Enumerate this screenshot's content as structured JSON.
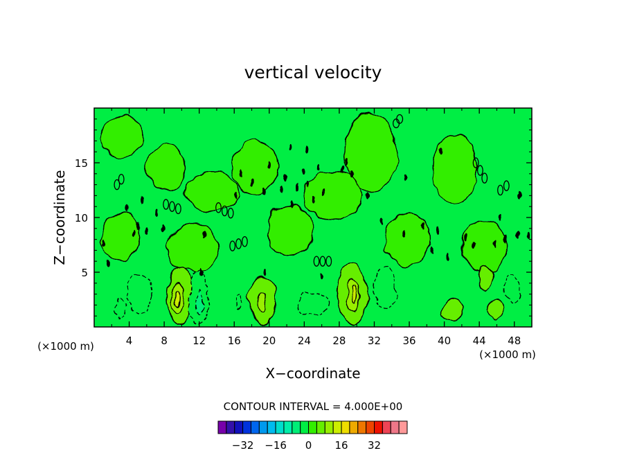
{
  "chart_data": {
    "type": "heatmap",
    "title": "vertical velocity",
    "xlabel": "X−coordinate",
    "ylabel": "Z−coordinate",
    "x_unit_label": "(×1000 m)",
    "y_unit_label": "(×1000 m)",
    "xlim": [
      0,
      50
    ],
    "ylim": [
      0,
      20
    ],
    "x_ticks": [
      {
        "value": 4,
        "label": "4"
      },
      {
        "value": 8,
        "label": "8"
      },
      {
        "value": 12,
        "label": "12"
      },
      {
        "value": 16,
        "label": "16"
      },
      {
        "value": 20,
        "label": "20"
      },
      {
        "value": 24,
        "label": "24"
      },
      {
        "value": 28,
        "label": "28"
      },
      {
        "value": 32,
        "label": "32"
      },
      {
        "value": 36,
        "label": "36"
      },
      {
        "value": 40,
        "label": "40"
      },
      {
        "value": 44,
        "label": "44"
      },
      {
        "value": 48,
        "label": "48"
      }
    ],
    "y_ticks": [
      {
        "value": 5,
        "label": "5"
      },
      {
        "value": 10,
        "label": "10"
      },
      {
        "value": 15,
        "label": "15"
      }
    ],
    "contour_interval_text": "CONTOUR INTERVAL = 4.000E+00",
    "contour_interval": 4,
    "background_level_color": "#00ee44",
    "regions": [
      {
        "type": "positive",
        "level": 4,
        "x": 9.8,
        "z": 2.8,
        "rx": 1.5,
        "rz": 2.6
      },
      {
        "type": "positive",
        "level": 8,
        "x": 9.5,
        "z": 2.7,
        "rx": 0.7,
        "rz": 1.5
      },
      {
        "type": "positive",
        "level": 12,
        "x": 9.5,
        "z": 2.6,
        "rx": 0.25,
        "rz": 0.8
      },
      {
        "type": "positive",
        "level": 4,
        "x": 19.2,
        "z": 2.4,
        "rx": 1.6,
        "rz": 2.2
      },
      {
        "type": "positive",
        "level": 8,
        "x": 19.2,
        "z": 2.2,
        "rx": 0.5,
        "rz": 0.9
      },
      {
        "type": "positive",
        "level": 4,
        "x": 29.5,
        "z": 3.0,
        "rx": 1.7,
        "rz": 2.8
      },
      {
        "type": "positive",
        "level": 8,
        "x": 29.6,
        "z": 2.9,
        "rx": 0.8,
        "rz": 1.5
      },
      {
        "type": "positive",
        "level": 12,
        "x": 29.8,
        "z": 3.0,
        "rx": 0.3,
        "rz": 0.8
      },
      {
        "type": "positive",
        "level": 4,
        "x": 41.0,
        "z": 1.5,
        "rx": 1.2,
        "rz": 1.0
      },
      {
        "type": "positive",
        "level": 4,
        "x": 44.8,
        "z": 4.5,
        "rx": 0.8,
        "rz": 1.2
      },
      {
        "type": "positive",
        "level": 4,
        "x": 45.8,
        "z": 1.6,
        "rx": 0.8,
        "rz": 0.9
      },
      {
        "type": "negative",
        "level": -4,
        "x": 5.2,
        "z": 3.0,
        "rx": 1.4,
        "rz": 1.8
      },
      {
        "type": "negative",
        "level": -4,
        "x": 12.0,
        "z": 2.8,
        "rx": 1.1,
        "rz": 2.5
      },
      {
        "type": "negative",
        "level": -8,
        "x": 12.1,
        "z": 2.3,
        "rx": 0.35,
        "rz": 1.0
      },
      {
        "type": "negative",
        "level": -4,
        "x": 3.0,
        "z": 1.6,
        "rx": 0.6,
        "rz": 0.8
      },
      {
        "type": "negative",
        "level": -4,
        "x": 25.0,
        "z": 2.1,
        "rx": 1.7,
        "rz": 1.1
      },
      {
        "type": "negative",
        "level": -4,
        "x": 33.2,
        "z": 3.5,
        "rx": 1.2,
        "rz": 1.8
      },
      {
        "type": "negative",
        "level": -4,
        "x": 47.7,
        "z": 3.6,
        "rx": 0.9,
        "rz": 1.2
      },
      {
        "type": "negative",
        "level": -4,
        "x": 16.5,
        "z": 2.4,
        "rx": 0.4,
        "rz": 0.6
      }
    ],
    "zero_contours": [
      {
        "x": 2.6,
        "z": 13.0,
        "rx": 0.3,
        "rz": 0.45
      },
      {
        "x": 3.1,
        "z": 13.5,
        "rx": 0.3,
        "rz": 0.45
      },
      {
        "x": 8.2,
        "z": 11.2,
        "rx": 0.3,
        "rz": 0.45
      },
      {
        "x": 8.9,
        "z": 11.0,
        "rx": 0.3,
        "rz": 0.45
      },
      {
        "x": 9.6,
        "z": 10.8,
        "rx": 0.3,
        "rz": 0.45
      },
      {
        "x": 14.2,
        "z": 10.9,
        "rx": 0.3,
        "rz": 0.45
      },
      {
        "x": 14.9,
        "z": 10.6,
        "rx": 0.3,
        "rz": 0.45
      },
      {
        "x": 15.6,
        "z": 10.4,
        "rx": 0.3,
        "rz": 0.45
      },
      {
        "x": 15.8,
        "z": 7.4,
        "rx": 0.3,
        "rz": 0.45
      },
      {
        "x": 16.5,
        "z": 7.6,
        "rx": 0.3,
        "rz": 0.45
      },
      {
        "x": 17.2,
        "z": 7.8,
        "rx": 0.3,
        "rz": 0.45
      },
      {
        "x": 25.4,
        "z": 6.0,
        "rx": 0.3,
        "rz": 0.45
      },
      {
        "x": 26.1,
        "z": 6.0,
        "rx": 0.3,
        "rz": 0.45
      },
      {
        "x": 26.8,
        "z": 6.0,
        "rx": 0.3,
        "rz": 0.45
      },
      {
        "x": 34.5,
        "z": 18.6,
        "rx": 0.35,
        "rz": 0.4
      },
      {
        "x": 34.9,
        "z": 19.0,
        "rx": 0.35,
        "rz": 0.4
      },
      {
        "x": 43.6,
        "z": 15.0,
        "rx": 0.3,
        "rz": 0.45
      },
      {
        "x": 44.1,
        "z": 14.3,
        "rx": 0.3,
        "rz": 0.45
      },
      {
        "x": 44.6,
        "z": 13.6,
        "rx": 0.3,
        "rz": 0.45
      },
      {
        "x": 46.4,
        "z": 12.5,
        "rx": 0.3,
        "rz": 0.45
      },
      {
        "x": 47.1,
        "z": 12.9,
        "rx": 0.3,
        "rz": 0.45
      }
    ],
    "region_outlines": [
      {
        "x": 3.2,
        "z": 17.4,
        "rx": 2.4,
        "rz": 1.9
      },
      {
        "x": 8.2,
        "z": 14.6,
        "rx": 2.2,
        "rz": 2.0
      },
      {
        "x": 18.4,
        "z": 14.6,
        "rx": 2.6,
        "rz": 2.4
      },
      {
        "x": 31.6,
        "z": 16.0,
        "rx": 3.0,
        "rz": 3.6
      },
      {
        "x": 41.2,
        "z": 14.4,
        "rx": 2.5,
        "rz": 3.2
      },
      {
        "x": 3.0,
        "z": 8.2,
        "rx": 2.2,
        "rz": 2.2
      },
      {
        "x": 11.2,
        "z": 7.2,
        "rx": 3.0,
        "rz": 2.1
      },
      {
        "x": 22.4,
        "z": 8.8,
        "rx": 2.6,
        "rz": 2.3
      },
      {
        "x": 35.8,
        "z": 8.0,
        "rx": 2.6,
        "rz": 2.4
      },
      {
        "x": 44.6,
        "z": 7.4,
        "rx": 2.6,
        "rz": 2.3
      },
      {
        "x": 27.2,
        "z": 12.0,
        "rx": 3.4,
        "rz": 2.2
      },
      {
        "x": 13.4,
        "z": 12.4,
        "rx": 3.0,
        "rz": 1.8
      }
    ],
    "small_dashes": [
      {
        "x": 3.8,
        "z": 10.9
      },
      {
        "x": 5.4,
        "z": 11.6
      },
      {
        "x": 4.6,
        "z": 8.6
      },
      {
        "x": 5.0,
        "z": 9.2
      },
      {
        "x": 6.0,
        "z": 8.8
      },
      {
        "x": 7.2,
        "z": 10.4
      },
      {
        "x": 7.8,
        "z": 9.0
      },
      {
        "x": 12.6,
        "z": 8.4
      },
      {
        "x": 16.2,
        "z": 12.0
      },
      {
        "x": 16.8,
        "z": 14.0
      },
      {
        "x": 18.0,
        "z": 13.2
      },
      {
        "x": 19.4,
        "z": 12.4
      },
      {
        "x": 20.0,
        "z": 14.8
      },
      {
        "x": 21.4,
        "z": 12.6
      },
      {
        "x": 21.8,
        "z": 13.6
      },
      {
        "x": 22.6,
        "z": 11.2
      },
      {
        "x": 23.2,
        "z": 12.8
      },
      {
        "x": 23.8,
        "z": 14.2
      },
      {
        "x": 24.4,
        "z": 13.1
      },
      {
        "x": 25.0,
        "z": 11.6
      },
      {
        "x": 25.6,
        "z": 14.6
      },
      {
        "x": 26.2,
        "z": 12.3
      },
      {
        "x": 24.3,
        "z": 16.2
      },
      {
        "x": 22.4,
        "z": 16.4
      },
      {
        "x": 28.4,
        "z": 14.4
      },
      {
        "x": 28.8,
        "z": 15.1
      },
      {
        "x": 29.4,
        "z": 14.0
      },
      {
        "x": 31.2,
        "z": 12.0
      },
      {
        "x": 32.8,
        "z": 9.6
      },
      {
        "x": 35.4,
        "z": 8.5
      },
      {
        "x": 37.6,
        "z": 9.2
      },
      {
        "x": 39.2,
        "z": 8.8
      },
      {
        "x": 42.4,
        "z": 8.2
      },
      {
        "x": 43.4,
        "z": 7.5
      },
      {
        "x": 45.8,
        "z": 7.6
      },
      {
        "x": 47.0,
        "z": 8.0
      },
      {
        "x": 48.4,
        "z": 8.4
      },
      {
        "x": 49.6,
        "z": 8.4
      },
      {
        "x": 1.0,
        "z": 7.6
      },
      {
        "x": 1.6,
        "z": 5.8
      },
      {
        "x": 12.2,
        "z": 5.0
      },
      {
        "x": 19.4,
        "z": 5.0
      },
      {
        "x": 26.0,
        "z": 4.6
      },
      {
        "x": 38.6,
        "z": 7.0
      },
      {
        "x": 40.4,
        "z": 6.4
      },
      {
        "x": 46.4,
        "z": 10.0
      },
      {
        "x": 48.6,
        "z": 12.0
      },
      {
        "x": 35.6,
        "z": 13.6
      },
      {
        "x": 39.6,
        "z": 16.0
      }
    ],
    "colorbar": {
      "colors": [
        "#7700aa",
        "#3311aa",
        "#1111bb",
        "#0033dd",
        "#0066ee",
        "#0099ee",
        "#00bbee",
        "#00ddcc",
        "#00eeaa",
        "#00ee77",
        "#00ee44",
        "#33ee00",
        "#66ee00",
        "#99ee00",
        "#ccee00",
        "#eedd00",
        "#eeaa00",
        "#ee7700",
        "#ee4400",
        "#ee1100",
        "#ee4455",
        "#ee7788",
        "#ff9999"
      ],
      "tick_labels": [
        {
          "value": -32,
          "label": "−32"
        },
        {
          "value": -16,
          "label": "−16"
        },
        {
          "value": 0,
          "label": "0"
        },
        {
          "value": 16,
          "label": "16"
        },
        {
          "value": 32,
          "label": "32"
        }
      ],
      "min": -44,
      "max": 48
    }
  }
}
